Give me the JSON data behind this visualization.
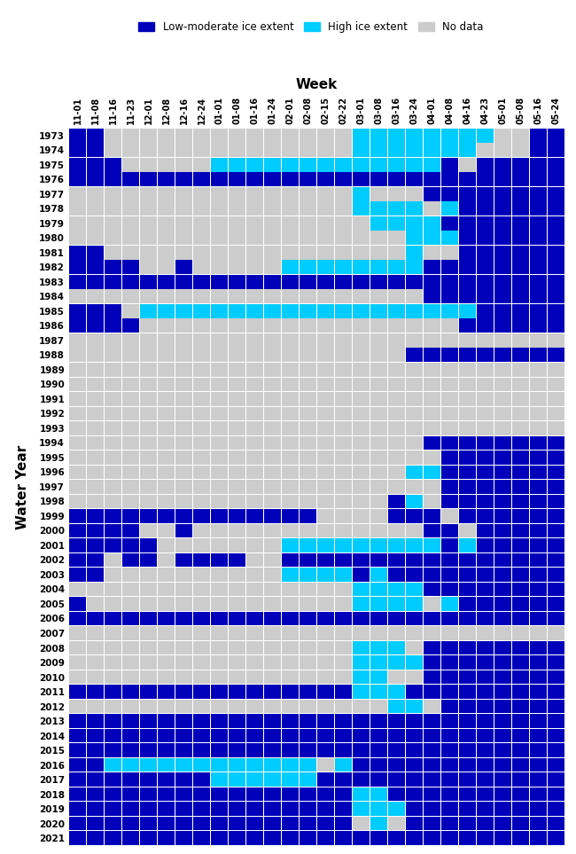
{
  "weeks": [
    "11-01",
    "11-08",
    "11-16",
    "11-23",
    "12-01",
    "12-08",
    "12-16",
    "12-24",
    "01-01",
    "01-08",
    "01-16",
    "01-24",
    "02-01",
    "02-08",
    "02-15",
    "02-22",
    "03-01",
    "03-08",
    "03-16",
    "03-24",
    "04-01",
    "04-08",
    "04-16",
    "04-23",
    "05-01",
    "05-08",
    "05-16",
    "05-24"
  ],
  "years": [
    1973,
    1974,
    1975,
    1976,
    1977,
    1978,
    1979,
    1980,
    1981,
    1982,
    1983,
    1984,
    1985,
    1986,
    1987,
    1988,
    1989,
    1990,
    1991,
    1992,
    1993,
    1994,
    1995,
    1996,
    1997,
    1998,
    1999,
    2000,
    2001,
    2002,
    2003,
    2004,
    2005,
    2006,
    2007,
    2008,
    2009,
    2010,
    2011,
    2012,
    2013,
    2014,
    2015,
    2016,
    2017,
    2018,
    2019,
    2020,
    2021
  ],
  "legend_labels": [
    "Low-moderate ice extent",
    "High ice extent",
    "No data"
  ],
  "xlabel": "Week",
  "ylabel": "Water Year",
  "cell_low_moderate": "#0000BB",
  "cell_high": "#00CCFF",
  "cell_no_data": "#CCCCCC",
  "background_color": "#FFFFFF",
  "matrix": [
    [
      1,
      1,
      0,
      0,
      0,
      0,
      0,
      0,
      0,
      0,
      0,
      0,
      0,
      0,
      0,
      0,
      2,
      2,
      2,
      2,
      2,
      2,
      2,
      2,
      0,
      0,
      1,
      1
    ],
    [
      1,
      1,
      0,
      0,
      0,
      0,
      0,
      0,
      0,
      0,
      0,
      0,
      0,
      0,
      0,
      0,
      2,
      2,
      2,
      2,
      2,
      2,
      2,
      0,
      0,
      0,
      1,
      1
    ],
    [
      1,
      1,
      1,
      0,
      0,
      0,
      0,
      0,
      2,
      2,
      2,
      2,
      2,
      2,
      2,
      2,
      2,
      2,
      2,
      2,
      2,
      1,
      0,
      1,
      1,
      1,
      1,
      1
    ],
    [
      1,
      1,
      1,
      1,
      1,
      1,
      1,
      1,
      1,
      1,
      1,
      1,
      1,
      1,
      1,
      1,
      1,
      1,
      1,
      1,
      1,
      1,
      1,
      1,
      1,
      1,
      1,
      1
    ],
    [
      0,
      0,
      0,
      0,
      0,
      0,
      0,
      0,
      0,
      0,
      0,
      0,
      0,
      0,
      0,
      0,
      2,
      0,
      0,
      0,
      1,
      1,
      1,
      1,
      1,
      1,
      1,
      1
    ],
    [
      0,
      0,
      0,
      0,
      0,
      0,
      0,
      0,
      0,
      0,
      0,
      0,
      0,
      0,
      0,
      0,
      2,
      2,
      2,
      2,
      0,
      2,
      1,
      1,
      1,
      1,
      1,
      1
    ],
    [
      0,
      0,
      0,
      0,
      0,
      0,
      0,
      0,
      0,
      0,
      0,
      0,
      0,
      0,
      0,
      0,
      0,
      2,
      2,
      2,
      2,
      1,
      1,
      1,
      1,
      1,
      1,
      1
    ],
    [
      0,
      0,
      0,
      0,
      0,
      0,
      0,
      0,
      0,
      0,
      0,
      0,
      0,
      0,
      0,
      0,
      0,
      0,
      0,
      2,
      2,
      2,
      1,
      1,
      1,
      1,
      1,
      1
    ],
    [
      1,
      1,
      0,
      0,
      0,
      0,
      0,
      0,
      0,
      0,
      0,
      0,
      0,
      0,
      0,
      0,
      0,
      0,
      0,
      2,
      0,
      0,
      1,
      1,
      1,
      1,
      1,
      1
    ],
    [
      1,
      1,
      1,
      1,
      0,
      0,
      1,
      0,
      0,
      0,
      0,
      0,
      2,
      2,
      2,
      2,
      2,
      2,
      2,
      2,
      1,
      1,
      1,
      1,
      1,
      1,
      1,
      1
    ],
    [
      1,
      1,
      1,
      1,
      1,
      1,
      1,
      1,
      1,
      1,
      1,
      1,
      1,
      1,
      1,
      1,
      1,
      1,
      1,
      1,
      1,
      1,
      1,
      1,
      1,
      1,
      1,
      1
    ],
    [
      0,
      0,
      0,
      0,
      0,
      0,
      0,
      0,
      0,
      0,
      0,
      0,
      0,
      0,
      0,
      0,
      0,
      0,
      0,
      0,
      1,
      1,
      1,
      1,
      1,
      1,
      1,
      1
    ],
    [
      1,
      1,
      1,
      0,
      2,
      2,
      2,
      2,
      2,
      2,
      2,
      2,
      2,
      2,
      2,
      2,
      2,
      2,
      2,
      2,
      2,
      2,
      2,
      1,
      1,
      1,
      1,
      1
    ],
    [
      1,
      1,
      1,
      1,
      0,
      0,
      0,
      0,
      0,
      0,
      0,
      0,
      0,
      0,
      0,
      0,
      0,
      0,
      0,
      0,
      0,
      0,
      1,
      1,
      1,
      1,
      1,
      1
    ],
    [
      0,
      0,
      0,
      0,
      0,
      0,
      0,
      0,
      0,
      0,
      0,
      0,
      0,
      0,
      0,
      0,
      0,
      0,
      0,
      0,
      0,
      0,
      0,
      0,
      0,
      0,
      0,
      0
    ],
    [
      0,
      0,
      0,
      0,
      0,
      0,
      0,
      0,
      0,
      0,
      0,
      0,
      0,
      0,
      0,
      0,
      0,
      0,
      0,
      1,
      1,
      1,
      1,
      1,
      1,
      1,
      1,
      1
    ],
    [
      0,
      0,
      0,
      0,
      0,
      0,
      0,
      0,
      0,
      0,
      0,
      0,
      0,
      0,
      0,
      0,
      0,
      0,
      0,
      0,
      0,
      0,
      0,
      0,
      0,
      0,
      0,
      0
    ],
    [
      0,
      0,
      0,
      0,
      0,
      0,
      0,
      0,
      0,
      0,
      0,
      0,
      0,
      0,
      0,
      0,
      0,
      0,
      0,
      0,
      0,
      0,
      0,
      0,
      0,
      0,
      0,
      0
    ],
    [
      0,
      0,
      0,
      0,
      0,
      0,
      0,
      0,
      0,
      0,
      0,
      0,
      0,
      0,
      0,
      0,
      0,
      0,
      0,
      0,
      0,
      0,
      0,
      0,
      0,
      0,
      0,
      0
    ],
    [
      0,
      0,
      0,
      0,
      0,
      0,
      0,
      0,
      0,
      0,
      0,
      0,
      0,
      0,
      0,
      0,
      0,
      0,
      0,
      0,
      0,
      0,
      0,
      0,
      0,
      0,
      0,
      0
    ],
    [
      0,
      0,
      0,
      0,
      0,
      0,
      0,
      0,
      0,
      0,
      0,
      0,
      0,
      0,
      0,
      0,
      0,
      0,
      0,
      0,
      0,
      0,
      0,
      0,
      0,
      0,
      0,
      0
    ],
    [
      0,
      0,
      0,
      0,
      0,
      0,
      0,
      0,
      0,
      0,
      0,
      0,
      0,
      0,
      0,
      0,
      0,
      0,
      0,
      0,
      1,
      1,
      1,
      1,
      1,
      1,
      1,
      1
    ],
    [
      0,
      0,
      0,
      0,
      0,
      0,
      0,
      0,
      0,
      0,
      0,
      0,
      0,
      0,
      0,
      0,
      0,
      0,
      0,
      0,
      0,
      1,
      1,
      1,
      1,
      1,
      1,
      1
    ],
    [
      0,
      0,
      0,
      0,
      0,
      0,
      0,
      0,
      0,
      0,
      0,
      0,
      0,
      0,
      0,
      0,
      0,
      0,
      0,
      2,
      2,
      1,
      1,
      1,
      1,
      1,
      1,
      1
    ],
    [
      0,
      0,
      0,
      0,
      0,
      0,
      0,
      0,
      0,
      0,
      0,
      0,
      0,
      0,
      0,
      0,
      0,
      0,
      0,
      0,
      0,
      1,
      1,
      1,
      1,
      1,
      1,
      1
    ],
    [
      0,
      0,
      0,
      0,
      0,
      0,
      0,
      0,
      0,
      0,
      0,
      0,
      0,
      0,
      0,
      0,
      0,
      0,
      1,
      2,
      0,
      1,
      1,
      1,
      1,
      1,
      1,
      1
    ],
    [
      1,
      1,
      1,
      1,
      1,
      1,
      1,
      1,
      1,
      1,
      1,
      1,
      1,
      1,
      0,
      0,
      0,
      0,
      1,
      1,
      1,
      0,
      1,
      1,
      1,
      1,
      1,
      1
    ],
    [
      1,
      1,
      1,
      1,
      0,
      0,
      1,
      0,
      0,
      0,
      0,
      0,
      0,
      0,
      0,
      0,
      0,
      0,
      0,
      0,
      1,
      1,
      0,
      1,
      1,
      1,
      1,
      1
    ],
    [
      1,
      1,
      1,
      1,
      1,
      0,
      0,
      0,
      0,
      0,
      0,
      0,
      2,
      2,
      2,
      2,
      2,
      2,
      2,
      2,
      2,
      1,
      2,
      1,
      1,
      1,
      1,
      1
    ],
    [
      1,
      1,
      0,
      1,
      1,
      0,
      1,
      1,
      1,
      1,
      0,
      0,
      1,
      1,
      1,
      1,
      1,
      1,
      1,
      1,
      1,
      1,
      1,
      1,
      1,
      1,
      1,
      1
    ],
    [
      1,
      1,
      0,
      0,
      0,
      0,
      0,
      0,
      0,
      0,
      0,
      0,
      2,
      2,
      2,
      2,
      1,
      2,
      1,
      1,
      1,
      1,
      1,
      1,
      1,
      1,
      1,
      1
    ],
    [
      0,
      0,
      0,
      0,
      0,
      0,
      0,
      0,
      0,
      0,
      0,
      0,
      0,
      0,
      0,
      0,
      2,
      2,
      2,
      2,
      1,
      1,
      1,
      1,
      1,
      1,
      1,
      1
    ],
    [
      1,
      0,
      0,
      0,
      0,
      0,
      0,
      0,
      0,
      0,
      0,
      0,
      0,
      0,
      0,
      0,
      2,
      2,
      2,
      2,
      0,
      2,
      1,
      1,
      1,
      1,
      1,
      1
    ],
    [
      1,
      1,
      1,
      1,
      1,
      1,
      1,
      1,
      1,
      1,
      1,
      1,
      1,
      1,
      1,
      1,
      1,
      1,
      1,
      1,
      1,
      1,
      1,
      1,
      1,
      1,
      1,
      1
    ],
    [
      0,
      0,
      0,
      0,
      0,
      0,
      0,
      0,
      0,
      0,
      0,
      0,
      0,
      0,
      0,
      0,
      0,
      0,
      0,
      0,
      0,
      0,
      0,
      0,
      0,
      0,
      0,
      0
    ],
    [
      0,
      0,
      0,
      0,
      0,
      0,
      0,
      0,
      0,
      0,
      0,
      0,
      0,
      0,
      0,
      0,
      2,
      2,
      2,
      0,
      1,
      1,
      1,
      1,
      1,
      1,
      1,
      1
    ],
    [
      0,
      0,
      0,
      0,
      0,
      0,
      0,
      0,
      0,
      0,
      0,
      0,
      0,
      0,
      0,
      0,
      2,
      2,
      2,
      2,
      1,
      1,
      1,
      1,
      1,
      1,
      1,
      1
    ],
    [
      0,
      0,
      0,
      0,
      0,
      0,
      0,
      0,
      0,
      0,
      0,
      0,
      0,
      0,
      0,
      0,
      2,
      2,
      0,
      0,
      1,
      1,
      1,
      1,
      1,
      1,
      1,
      1
    ],
    [
      1,
      1,
      1,
      1,
      1,
      1,
      1,
      1,
      1,
      1,
      1,
      1,
      1,
      1,
      1,
      1,
      2,
      2,
      2,
      1,
      1,
      1,
      1,
      1,
      1,
      1,
      1,
      1
    ],
    [
      0,
      0,
      0,
      0,
      0,
      0,
      0,
      0,
      0,
      0,
      0,
      0,
      0,
      0,
      0,
      0,
      0,
      0,
      2,
      2,
      0,
      1,
      1,
      1,
      1,
      1,
      1,
      1
    ],
    [
      1,
      1,
      1,
      1,
      1,
      1,
      1,
      1,
      1,
      1,
      1,
      1,
      1,
      1,
      1,
      1,
      1,
      1,
      1,
      1,
      1,
      1,
      1,
      1,
      1,
      1,
      1,
      1
    ],
    [
      1,
      1,
      1,
      1,
      1,
      1,
      1,
      1,
      1,
      1,
      1,
      1,
      1,
      1,
      1,
      1,
      1,
      1,
      1,
      1,
      1,
      1,
      1,
      1,
      1,
      1,
      1,
      1
    ],
    [
      1,
      1,
      1,
      1,
      1,
      1,
      1,
      1,
      1,
      1,
      1,
      1,
      1,
      1,
      1,
      1,
      1,
      1,
      1,
      1,
      1,
      1,
      1,
      1,
      1,
      1,
      1,
      1
    ],
    [
      1,
      1,
      2,
      2,
      2,
      2,
      2,
      2,
      2,
      2,
      2,
      2,
      2,
      2,
      0,
      2,
      1,
      1,
      1,
      1,
      1,
      1,
      1,
      1,
      1,
      1,
      1,
      1
    ],
    [
      1,
      1,
      1,
      1,
      1,
      1,
      1,
      1,
      2,
      2,
      2,
      2,
      2,
      2,
      1,
      1,
      1,
      1,
      1,
      1,
      1,
      1,
      1,
      1,
      1,
      1,
      1,
      1
    ],
    [
      1,
      1,
      1,
      1,
      1,
      1,
      1,
      1,
      1,
      1,
      1,
      1,
      1,
      1,
      1,
      1,
      2,
      2,
      1,
      1,
      1,
      1,
      1,
      1,
      1,
      1,
      1,
      1
    ],
    [
      1,
      1,
      1,
      1,
      1,
      1,
      1,
      1,
      1,
      1,
      1,
      1,
      1,
      1,
      1,
      1,
      2,
      2,
      2,
      1,
      1,
      1,
      1,
      1,
      1,
      1,
      1,
      1
    ],
    [
      1,
      1,
      1,
      1,
      1,
      1,
      1,
      1,
      1,
      1,
      1,
      1,
      1,
      1,
      1,
      1,
      0,
      2,
      0,
      1,
      1,
      1,
      1,
      1,
      1,
      1,
      1,
      1
    ],
    [
      1,
      1,
      1,
      1,
      1,
      1,
      1,
      1,
      1,
      1,
      1,
      1,
      1,
      1,
      1,
      1,
      1,
      1,
      1,
      1,
      1,
      1,
      1,
      1,
      1,
      1,
      1,
      1
    ]
  ]
}
